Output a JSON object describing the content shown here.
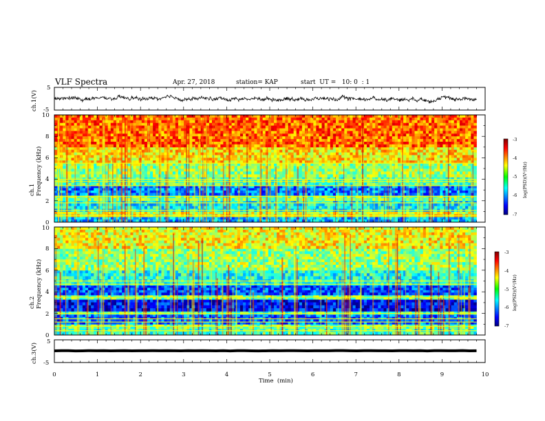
{
  "header": {
    "title": "VLF Spectra",
    "date": "Apr. 27, 2018",
    "station": "station= KAP",
    "start": "start  UT =   10: 0  : 1"
  },
  "chart_data": [
    {
      "type": "line",
      "name": "ch1-waveform",
      "ylabel": "ch.1(V)",
      "ylim": [
        -5,
        5
      ],
      "yticks": [
        "5",
        "-5"
      ],
      "xlim": [
        0,
        10
      ],
      "x_end": 9.8,
      "approx_level": 0,
      "approx_amplitude": 1.2
    },
    {
      "type": "heatmap",
      "name": "ch1-spectrogram",
      "ylabel": "ch.1\nFrequency (kHz)",
      "ylim": [
        0,
        10
      ],
      "yticks": [
        "0",
        "2",
        "4",
        "6",
        "8",
        "10"
      ],
      "xlim": [
        0,
        10
      ],
      "x_end": 9.8,
      "colorscale": "jet",
      "colorbar": {
        "range": [
          -7,
          -3
        ],
        "ticks": [
          "-3",
          "-4",
          "-5",
          "-6",
          "-7"
        ],
        "label": "log(PSD)(V²/Hz)"
      },
      "bands": [
        {
          "f": [
            0,
            0.5
          ],
          "level": -5.8
        },
        {
          "f": [
            0.5,
            1.0
          ],
          "level": -4.6
        },
        {
          "f": [
            1.0,
            2.0
          ],
          "level": -5.5
        },
        {
          "f": [
            2.0,
            2.5
          ],
          "level": -5.0
        },
        {
          "f": [
            2.5,
            3.4
          ],
          "level": -6.0
        },
        {
          "f": [
            3.4,
            4.2
          ],
          "level": -5.2
        },
        {
          "f": [
            4.2,
            5.5
          ],
          "level": -4.9
        },
        {
          "f": [
            5.5,
            7.0
          ],
          "level": -4.4
        },
        {
          "f": [
            7.0,
            10.0
          ],
          "level": -3.9
        }
      ],
      "lines_khz": [
        0.6,
        1.1,
        1.8,
        2.4,
        3.4,
        3.8,
        4.0,
        5.5
      ]
    },
    {
      "type": "heatmap",
      "name": "ch2-spectrogram",
      "ylabel": "ch.2\nFrequency (kHz)",
      "ylim": [
        0,
        10
      ],
      "yticks": [
        "0",
        "2",
        "4",
        "6",
        "8",
        "10"
      ],
      "xlim": [
        0,
        10
      ],
      "x_end": 9.8,
      "colorscale": "jet",
      "colorbar": {
        "range": [
          -7,
          -3
        ],
        "ticks": [
          "-3",
          "-4",
          "-5",
          "-6",
          "-7"
        ],
        "label": "log(PSD)(V²/Hz)"
      },
      "bands": [
        {
          "f": [
            0,
            0.6
          ],
          "level": -5.2
        },
        {
          "f": [
            0.6,
            1.0
          ],
          "level": -5.0
        },
        {
          "f": [
            1.0,
            1.9
          ],
          "level": -6.1
        },
        {
          "f": [
            1.9,
            2.2
          ],
          "level": -5.2
        },
        {
          "f": [
            2.2,
            3.3
          ],
          "level": -6.5
        },
        {
          "f": [
            3.3,
            3.7
          ],
          "level": -5.0
        },
        {
          "f": [
            3.7,
            4.6
          ],
          "level": -6.2
        },
        {
          "f": [
            4.6,
            6.0
          ],
          "level": -5.4
        },
        {
          "f": [
            6.0,
            8.0
          ],
          "level": -4.9
        },
        {
          "f": [
            8.0,
            10.0
          ],
          "level": -4.5
        }
      ],
      "lines_khz": [
        0.4,
        0.8,
        1.2,
        1.5,
        2.0,
        3.5,
        4.7,
        5.0
      ]
    },
    {
      "type": "line",
      "name": "ch3-waveform",
      "ylabel": "ch.3(V)",
      "ylim": [
        -5,
        5
      ],
      "yticks": [
        "5",
        "0",
        "-5"
      ],
      "xlim": [
        0,
        10
      ],
      "x_end": 9.8,
      "approx_level": 0.2,
      "approx_amplitude": 0.15
    }
  ],
  "xaxis": {
    "label": "Time  (min)",
    "ticks": [
      "0",
      "1",
      "2",
      "3",
      "4",
      "5",
      "6",
      "7",
      "8",
      "9",
      "10"
    ]
  }
}
